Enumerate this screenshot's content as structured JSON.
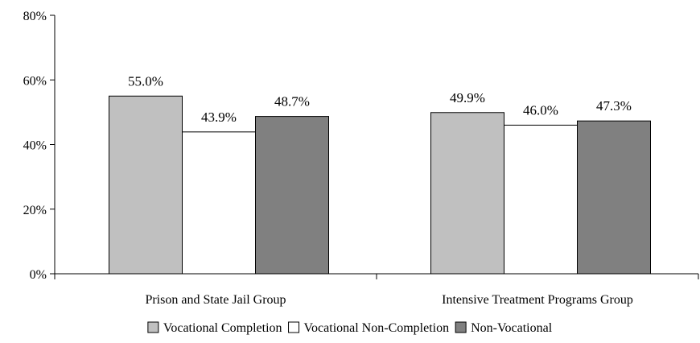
{
  "chart_data": {
    "type": "bar",
    "categories": [
      "Prison and State Jail Group",
      "Intensive Treatment Programs Group"
    ],
    "series": [
      {
        "name": "Vocational Completion",
        "values": [
          55.0,
          49.9
        ],
        "labels": [
          "55.0%",
          "49.9%"
        ],
        "color": "#c0c0c0"
      },
      {
        "name": "Vocational Non-Completion",
        "values": [
          43.9,
          46.0
        ],
        "labels": [
          "43.9%",
          "46.0%"
        ],
        "color": "#ffffff"
      },
      {
        "name": "Non-Vocational",
        "values": [
          48.7,
          47.3
        ],
        "labels": [
          "48.7%",
          "47.3%"
        ],
        "color": "#808080"
      }
    ],
    "ylim": [
      0,
      80
    ],
    "yticks": [
      0,
      20,
      40,
      60,
      80
    ],
    "ytick_labels": [
      "0%",
      "20%",
      "40%",
      "60%",
      "80%"
    ],
    "grid": false,
    "legend_position": "bottom",
    "title": "",
    "xlabel": "",
    "ylabel": ""
  }
}
